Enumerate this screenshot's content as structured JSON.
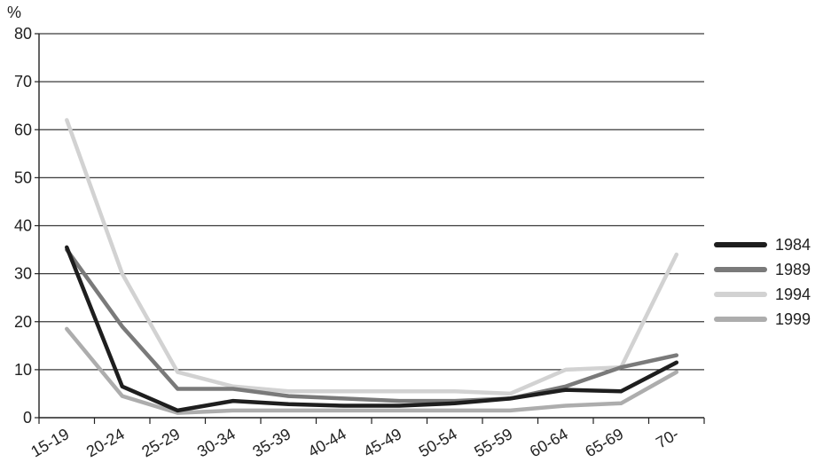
{
  "chart_data": {
    "type": "line",
    "unit_label": "%",
    "categories": [
      "15-19",
      "20-24",
      "25-29",
      "30-34",
      "35-39",
      "40-44",
      "45-49",
      "50-54",
      "55-59",
      "60-64",
      "65-69",
      "70-"
    ],
    "ylim": [
      0,
      80
    ],
    "yticks": [
      0,
      10,
      20,
      30,
      40,
      50,
      60,
      70,
      80
    ],
    "grid": true,
    "legend_position": "right",
    "series": [
      {
        "name": "1984",
        "color": "#1e1e1e",
        "values": [
          35.5,
          6.5,
          1.5,
          3.5,
          2.8,
          2.5,
          2.5,
          3.0,
          4.0,
          5.8,
          5.5,
          11.5
        ]
      },
      {
        "name": "1989",
        "color": "#7a7a7a",
        "values": [
          35.0,
          19.0,
          6.0,
          6.0,
          4.5,
          4.0,
          3.5,
          3.5,
          4.0,
          6.5,
          10.5,
          13.0
        ]
      },
      {
        "name": "1994",
        "color": "#d2d2d2",
        "values": [
          62.0,
          30.0,
          9.5,
          6.5,
          5.5,
          5.5,
          5.5,
          5.5,
          5.0,
          10.0,
          10.5,
          34.0
        ]
      },
      {
        "name": "1999",
        "color": "#adadad",
        "values": [
          18.5,
          4.5,
          1.0,
          1.5,
          1.5,
          1.5,
          1.5,
          1.5,
          1.5,
          2.5,
          3.0,
          9.5
        ]
      }
    ]
  }
}
